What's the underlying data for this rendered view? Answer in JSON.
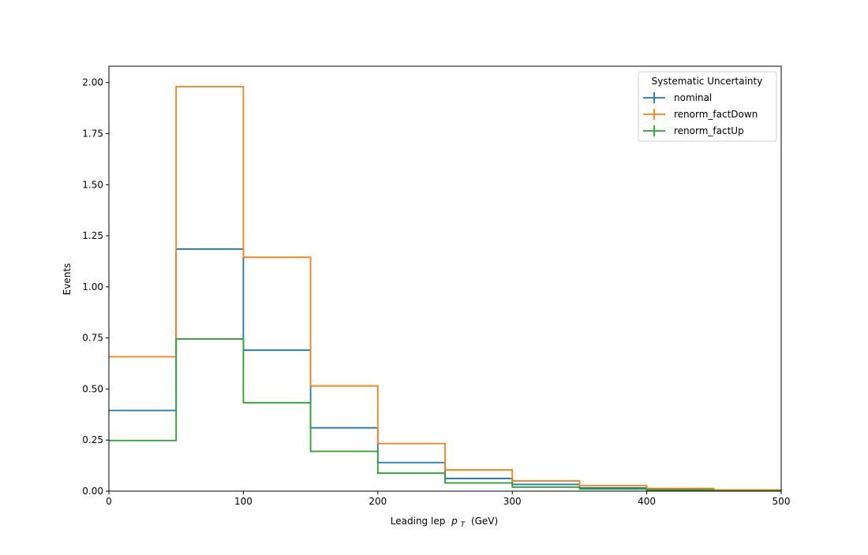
{
  "chart_data": {
    "type": "histogram-step",
    "bin_edges": [
      0,
      50,
      100,
      150,
      200,
      250,
      300,
      350,
      400,
      450,
      500
    ],
    "xlabel": "Leading lep",
    "xlabel_symbol": "p",
    "xlabel_subscript": "T",
    "xlabel_unit": "(GeV)",
    "ylabel": "Events",
    "xlim": [
      0,
      500
    ],
    "ylim": [
      0,
      2.08
    ],
    "xticks": [
      0,
      100,
      200,
      300,
      400,
      500
    ],
    "xtick_labels": [
      "0",
      "100",
      "200",
      "300",
      "400",
      "500"
    ],
    "yticks": [
      0,
      0.25,
      0.5,
      0.75,
      1.0,
      1.25,
      1.5,
      1.75,
      2.0
    ],
    "ytick_labels": [
      "0.00",
      "0.25",
      "0.50",
      "0.75",
      "1.00",
      "1.25",
      "1.50",
      "1.75",
      "2.00"
    ],
    "grid": false,
    "legend": {
      "title": "Systematic Uncertainty",
      "placement": "top-right"
    },
    "series": [
      {
        "name": "nominal",
        "color": "#1f77b4",
        "values": [
          0.395,
          1.185,
          0.69,
          0.31,
          0.14,
          0.062,
          0.033,
          0.016,
          0.008,
          0.004
        ]
      },
      {
        "name": "renorm_factDown",
        "color": "#ff7f0e",
        "values": [
          0.658,
          1.98,
          1.145,
          0.515,
          0.233,
          0.104,
          0.05,
          0.027,
          0.013,
          0.006
        ]
      },
      {
        "name": "renorm_factUp",
        "color": "#2ca02c",
        "values": [
          0.248,
          0.745,
          0.433,
          0.195,
          0.088,
          0.04,
          0.02,
          0.01,
          0.005,
          0.002
        ]
      }
    ]
  }
}
